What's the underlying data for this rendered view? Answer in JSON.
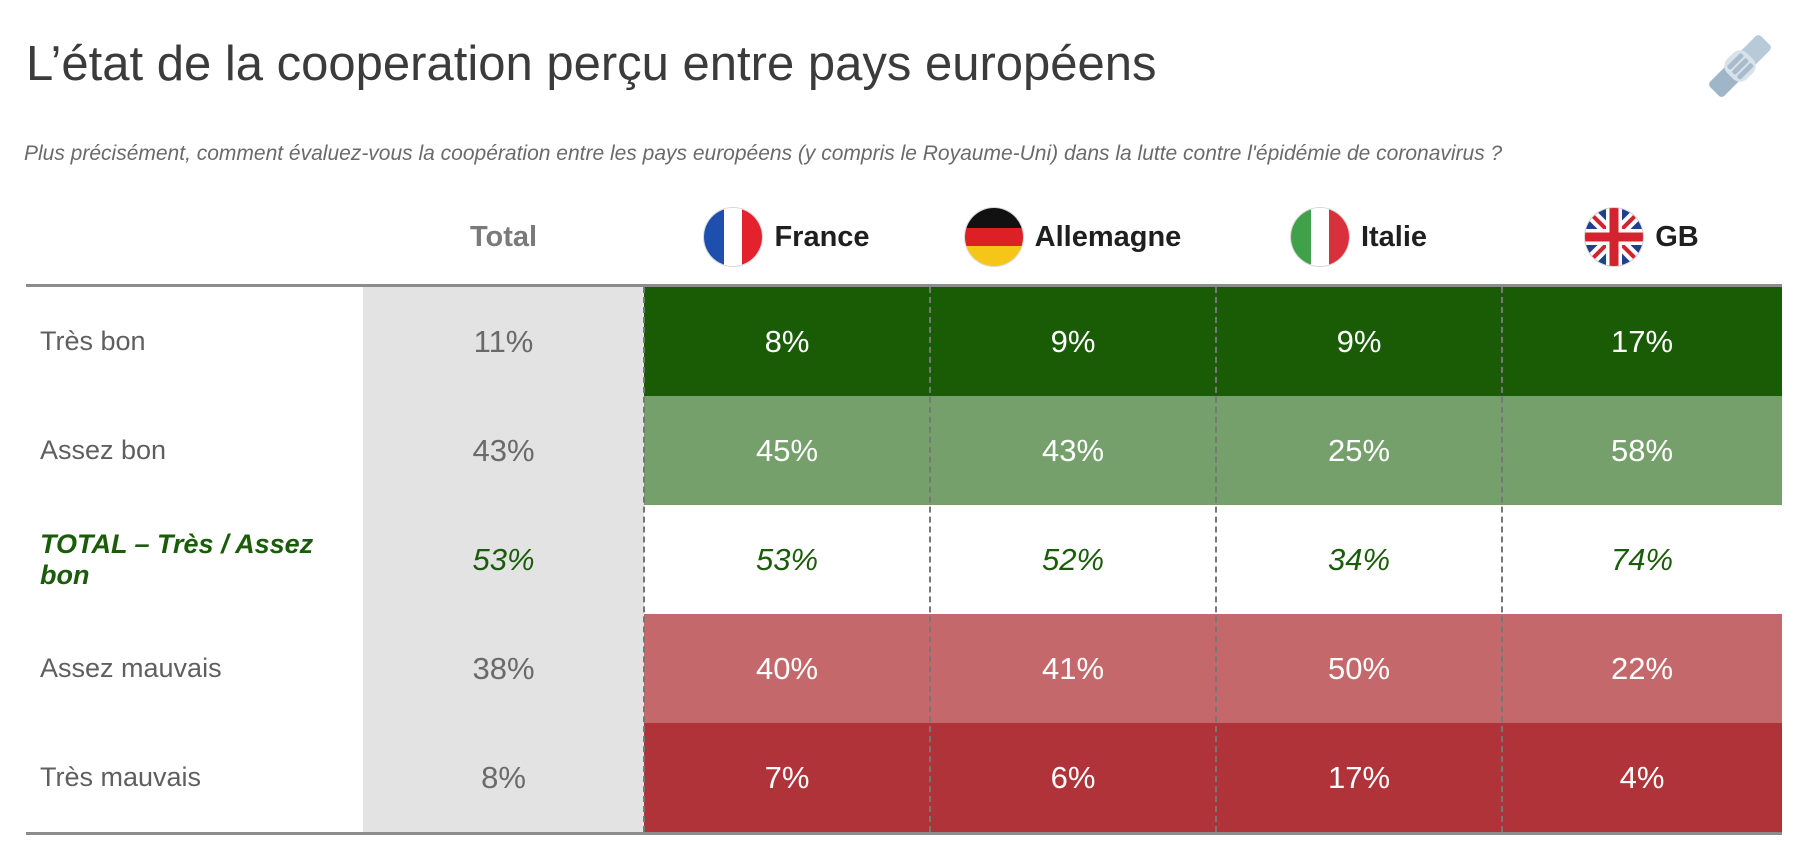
{
  "title": "L’état de la cooperation perçu entre pays européens",
  "subtitle": "Plus précisément, comment évaluez-vous la coopération entre les pays européens (y compris le Royaume-Uni) dans la lutte contre l'épidémie de coronavirus ?",
  "corner_icon": "handshake-icon",
  "colors": {
    "tres_bon": "#1a5c06",
    "assez_bon": "#75a06b",
    "total_bon": "#ffffff",
    "assez_mauvais": "#c4686c",
    "tres_mauvais": "#b0333a",
    "total_column": "#e3e3e3",
    "green_text": "#1a5c09"
  },
  "chart_data": {
    "type": "table",
    "columns": [
      {
        "key": "total",
        "label": "Total"
      },
      {
        "key": "france",
        "label": "France",
        "flag": "france-flag-icon"
      },
      {
        "key": "allemagne",
        "label": "Allemagne",
        "flag": "germany-flag-icon"
      },
      {
        "key": "italie",
        "label": "Italie",
        "flag": "italy-flag-icon"
      },
      {
        "key": "gb",
        "label": "GB",
        "flag": "uk-flag-icon"
      }
    ],
    "rows": [
      {
        "key": "tres_bon",
        "label": "Très bon",
        "values": [
          "11%",
          "8%",
          "9%",
          "9%",
          "17%"
        ]
      },
      {
        "key": "assez_bon",
        "label": "Assez bon",
        "values": [
          "43%",
          "45%",
          "43%",
          "25%",
          "58%"
        ]
      },
      {
        "key": "total_bon",
        "label": "TOTAL – Très / Assez bon",
        "values": [
          "53%",
          "53%",
          "52%",
          "34%",
          "74%"
        ]
      },
      {
        "key": "assez_mauvais",
        "label": "Assez mauvais",
        "values": [
          "38%",
          "40%",
          "41%",
          "50%",
          "22%"
        ]
      },
      {
        "key": "tres_mauvais",
        "label": "Très mauvais",
        "values": [
          "8%",
          "7%",
          "6%",
          "17%",
          "4%"
        ]
      }
    ]
  }
}
